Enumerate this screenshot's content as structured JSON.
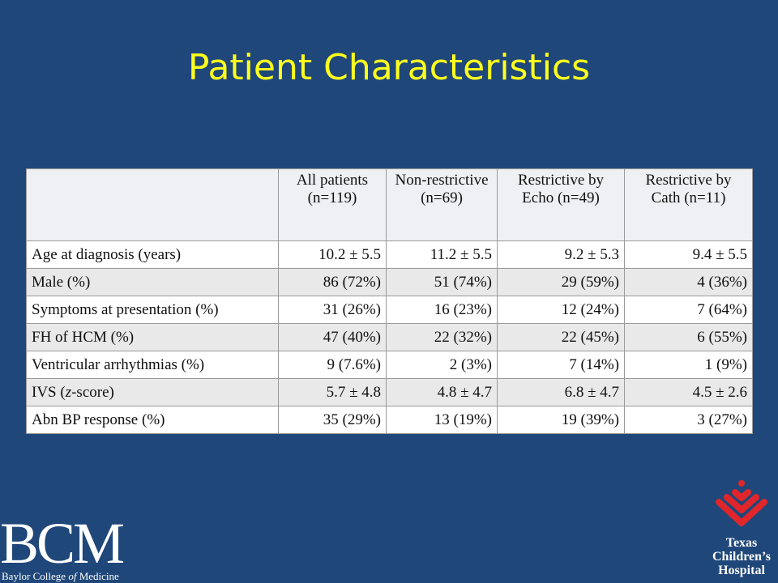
{
  "slide": {
    "title": "Patient Characteristics"
  },
  "table": {
    "headers": [
      "",
      "All patients (n=119)",
      "Non-restrictive (n=69)",
      "Restrictive by Echo (n=49)",
      "Restrictive by Cath (n=11)"
    ],
    "rows": [
      {
        "label": "Age at diagnosis (years)",
        "values": [
          "10.2 ± 5.5",
          "11.2 ± 5.5",
          "9.2 ± 5.3",
          "9.4 ± 5.5"
        ]
      },
      {
        "label": "Male (%)",
        "values": [
          "86 (72%)",
          "51 (74%)",
          "29 (59%)",
          "4 (36%)"
        ]
      },
      {
        "label": "Symptoms at presentation (%)",
        "values": [
          "31 (26%)",
          "16 (23%)",
          "12 (24%)",
          "7 (64%)"
        ]
      },
      {
        "label": "FH of HCM (%)",
        "values": [
          "47 (40%)",
          "22 (32%)",
          "22 (45%)",
          "6 (55%)"
        ]
      },
      {
        "label": "Ventricular arrhythmias (%)",
        "values": [
          "9 (7.6%)",
          "2 (3%)",
          "7 (14%)",
          "1 (9%)"
        ]
      },
      {
        "label_prefix": "IVS (",
        "label_italic": "z",
        "label_suffix": "-score)",
        "values": [
          "5.7 ± 4.8",
          "4.8 ± 4.7",
          "6.8 ± 4.7",
          "4.5 ± 2.6"
        ]
      },
      {
        "label": "Abn BP response (%)",
        "values": [
          "35 (29%)",
          "13 (19%)",
          "19 (39%)",
          "3 (27%)"
        ]
      }
    ]
  },
  "logos": {
    "bcm": {
      "letters": "BCM",
      "caption_prefix": "Baylor College ",
      "caption_italic": "of",
      "caption_suffix": " Medicine"
    },
    "tch": {
      "line1": "Texas",
      "line2": "Children’s",
      "line3": "Hospital",
      "emblem_color": "#e0262b"
    }
  },
  "colors": {
    "background": "#1f477a",
    "title": "#ffff1e",
    "table_bg": "#f1f1f1"
  }
}
